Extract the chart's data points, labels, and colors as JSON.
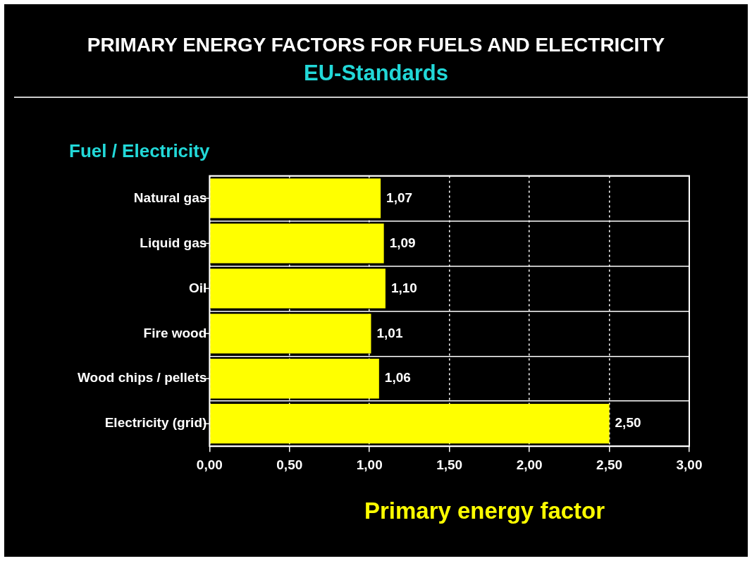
{
  "chart_data": {
    "type": "bar",
    "orientation": "horizontal",
    "title": "PRIMARY ENERGY FACTORS FOR FUELS AND ELECTRICITY",
    "subtitle": "EU-Standards",
    "ylabel": "Fuel / Electricity",
    "xlabel": "Primary energy factor",
    "categories": [
      "Natural gas",
      "Liquid gas",
      "Oil",
      "Fire wood",
      "Wood chips / pellets",
      "Electricity (grid)"
    ],
    "values": [
      1.07,
      1.09,
      1.1,
      1.01,
      1.06,
      2.5
    ],
    "value_labels": [
      "1,07",
      "1,09",
      "1,10",
      "1,01",
      "1,06",
      "2,50"
    ],
    "color": "#ffff00",
    "xlim": [
      0,
      3
    ],
    "xticks": [
      {
        "value": 0,
        "label": "0,00"
      },
      {
        "value": 0.5,
        "label": "0,50"
      },
      {
        "value": 1,
        "label": "1,00"
      },
      {
        "value": 1.5,
        "label": "1,50"
      },
      {
        "value": 2,
        "label": "2,00"
      },
      {
        "value": 2.5,
        "label": "2,50"
      },
      {
        "value": 3,
        "label": "3,00"
      }
    ],
    "grid": true,
    "legend": false
  }
}
